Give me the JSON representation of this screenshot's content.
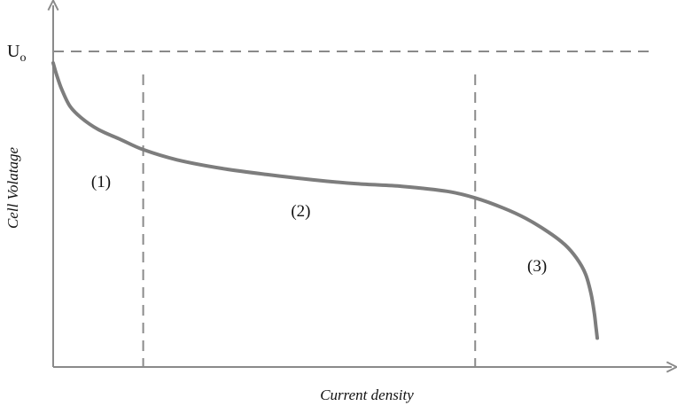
{
  "chart_data": {
    "type": "line",
    "title": "",
    "xlabel": "Current density",
    "ylabel": "Cell Volatage",
    "xlim": [
      0,
      100
    ],
    "ylim": [
      0,
      100
    ],
    "grid": false,
    "reference_line": {
      "label_main": "U",
      "label_sub": "o",
      "y": 100
    },
    "region_boundaries_x": [
      16,
      75
    ],
    "region_labels": [
      {
        "text": "(1)",
        "x": 8.5,
        "y": 53
      },
      {
        "text": "(2)",
        "x": 44,
        "y": 43
      },
      {
        "text": "(3)",
        "x": 86,
        "y": 24
      }
    ],
    "series": [
      {
        "values_x": [
          0,
          0.6,
          1.5,
          3,
          5,
          8,
          12,
          16,
          22,
          30,
          38,
          46,
          54,
          62,
          70,
          75,
          80,
          84,
          88,
          91,
          93,
          94.6,
          95.6,
          96.2,
          96.5,
          96.7
        ],
        "values_y": [
          96,
          92,
          87,
          81,
          77,
          73,
          69.5,
          66,
          62.5,
          59.5,
          57.4,
          55.6,
          54.2,
          53.3,
          51.6,
          49.3,
          45.8,
          42.2,
          37.5,
          33,
          28.5,
          23,
          16,
          9,
          4,
          0.8
        ]
      }
    ]
  }
}
